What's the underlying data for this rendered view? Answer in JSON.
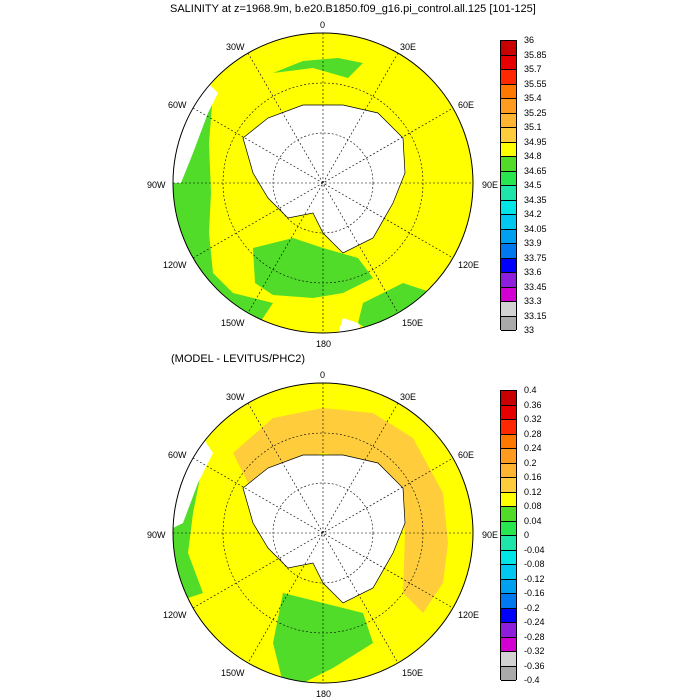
{
  "panel1": {
    "title": "SALINITY at z=1968.9m, b.e20.B1850.f09_g16.pi_control.all.125 [101-125]",
    "lon_labels": {
      "n0": "0",
      "n30e": "30E",
      "n60e": "60E",
      "n90e": "90E",
      "n120e": "120E",
      "n150e": "150E",
      "n180": "180",
      "n150w": "150W",
      "n120w": "120W",
      "n90w": "90W",
      "n60w": "60W",
      "n30w": "30W"
    },
    "colorbar": {
      "labels": [
        "36",
        "35.85",
        "35.7",
        "35.55",
        "35.4",
        "35.25",
        "35.1",
        "34.95",
        "34.8",
        "34.65",
        "34.5",
        "34.35",
        "34.2",
        "34.05",
        "33.9",
        "33.75",
        "33.6",
        "33.45",
        "33.3",
        "33.15",
        "33"
      ],
      "colors": [
        "#c80000",
        "#e60000",
        "#ff2800",
        "#ff7800",
        "#ff9b1e",
        "#ffb432",
        "#ffcd3c",
        "#ffff00",
        "#50dc28",
        "#28e650",
        "#1ee6aa",
        "#00e6e6",
        "#00c8f0",
        "#00a0f0",
        "#0078f0",
        "#0000ff",
        "#8c1edc",
        "#d200d2",
        "#d2d2d2",
        "#aaaaaa"
      ]
    }
  },
  "panel2": {
    "title": "(MODEL - LEVITUS/PHC2)",
    "lon_labels": {
      "n0": "0",
      "n30e": "30E",
      "n60e": "60E",
      "n90e": "90E",
      "n120e": "120E",
      "n150e": "150E",
      "n180": "180",
      "n150w": "150W",
      "n120w": "120W",
      "n90w": "90W",
      "n60w": "60W",
      "n30w": "30W"
    },
    "colorbar": {
      "labels": [
        "0.4",
        "0.36",
        "0.32",
        "0.28",
        "0.24",
        "0.2",
        "0.16",
        "0.12",
        "0.08",
        "0.04",
        "0",
        "-0.04",
        "-0.08",
        "-0.12",
        "-0.16",
        "-0.2",
        "-0.24",
        "-0.28",
        "-0.32",
        "-0.36",
        "-0.4"
      ],
      "colors": [
        "#c80000",
        "#e60000",
        "#ff2800",
        "#ff7800",
        "#ff9b1e",
        "#ffb432",
        "#ffcd3c",
        "#ffff00",
        "#50dc28",
        "#28e650",
        "#1ee6aa",
        "#00e6e6",
        "#00c8f0",
        "#00a0f0",
        "#0078f0",
        "#0000ff",
        "#8c1edc",
        "#d200d2",
        "#d2d2d2",
        "#aaaaaa"
      ]
    }
  },
  "colors": {
    "ocean_fill_1": "#ffff00",
    "ocean_fill_2": "#ffff00",
    "green": "#50dc28",
    "orange": "#ffcd3c",
    "land": "#ffffff"
  }
}
